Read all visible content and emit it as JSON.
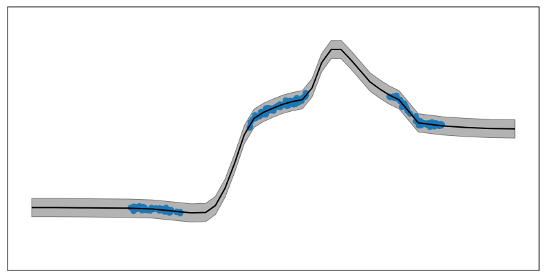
{
  "chart_data": {
    "type": "line",
    "title": "",
    "xlabel": "",
    "ylabel": "",
    "xlim": [
      -0.05,
      1.05
    ],
    "ylim": [
      -0.25,
      1.05
    ],
    "axes_ticks_visible": false,
    "grid": false,
    "legend": "none",
    "series": [
      {
        "kind": "band",
        "color": "#b3b3b3",
        "halfwidth": 0.045,
        "x": [
          0.0,
          0.05,
          0.1,
          0.15,
          0.2,
          0.25,
          0.3,
          0.33,
          0.36,
          0.38,
          0.4,
          0.42,
          0.44,
          0.46,
          0.48,
          0.5,
          0.52,
          0.54,
          0.56,
          0.58,
          0.6,
          0.62,
          0.64,
          0.66,
          0.68,
          0.7,
          0.72,
          0.74,
          0.76,
          0.8,
          0.85,
          0.9,
          0.95,
          1.0
        ],
        "y": [
          0.06,
          0.06,
          0.059,
          0.058,
          0.057,
          0.053,
          0.041,
          0.034,
          0.036,
          0.07,
          0.155,
          0.28,
          0.42,
          0.5,
          0.53,
          0.551,
          0.57,
          0.583,
          0.592,
          0.65,
          0.775,
          0.84,
          0.84,
          0.79,
          0.735,
          0.68,
          0.645,
          0.615,
          0.592,
          0.478,
          0.463,
          0.455,
          0.45,
          0.448
        ]
      },
      {
        "kind": "line",
        "color": "#000000",
        "x": [
          0.0,
          0.05,
          0.1,
          0.15,
          0.2,
          0.25,
          0.3,
          0.33,
          0.36,
          0.38,
          0.4,
          0.42,
          0.44,
          0.46,
          0.48,
          0.5,
          0.52,
          0.54,
          0.56,
          0.58,
          0.6,
          0.62,
          0.64,
          0.66,
          0.68,
          0.7,
          0.72,
          0.74,
          0.76,
          0.8,
          0.85,
          0.9,
          0.95,
          1.0
        ],
        "y": [
          0.06,
          0.06,
          0.059,
          0.058,
          0.057,
          0.053,
          0.041,
          0.034,
          0.036,
          0.07,
          0.155,
          0.28,
          0.42,
          0.5,
          0.53,
          0.551,
          0.57,
          0.583,
          0.592,
          0.65,
          0.775,
          0.84,
          0.84,
          0.79,
          0.735,
          0.68,
          0.645,
          0.615,
          0.592,
          0.478,
          0.463,
          0.455,
          0.45,
          0.448
        ]
      },
      {
        "kind": "scatter",
        "color": "#1f77b4",
        "clusters": [
          {
            "x_range": [
              0.2,
              0.31
            ],
            "center_y": 0.045,
            "spread": 0.018,
            "count": 60
          },
          {
            "x_range": [
              0.45,
              0.57
            ],
            "center_y": 0.56,
            "spread": 0.022,
            "count": 65
          },
          {
            "x_range": [
              0.74,
              0.85
            ],
            "center_y": 0.6,
            "spread": 0.022,
            "count": 55
          }
        ]
      }
    ]
  }
}
